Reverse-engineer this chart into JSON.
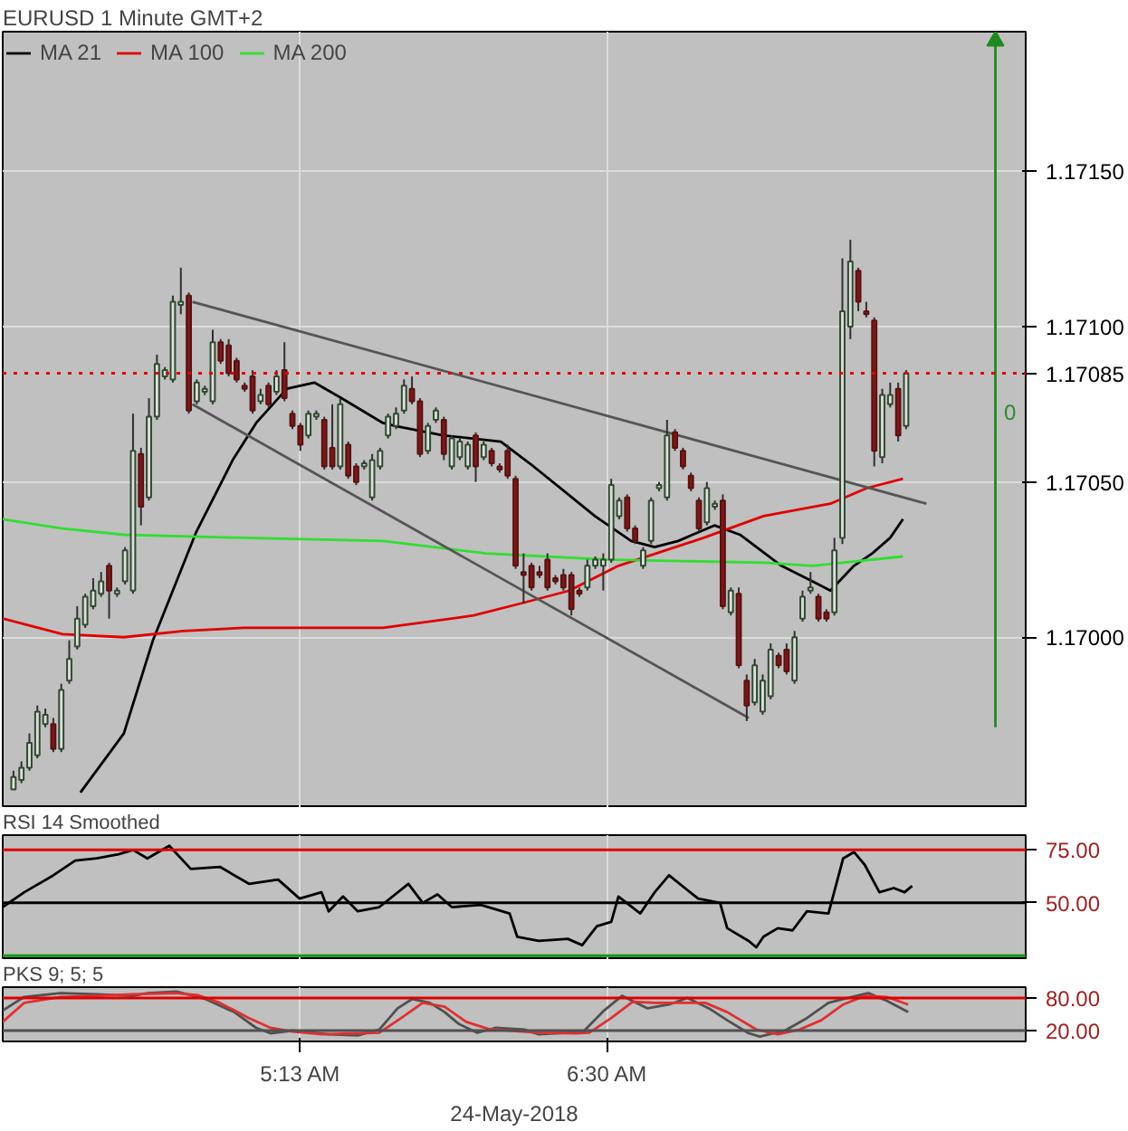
{
  "chart_data": [
    {
      "type": "candlestick",
      "title": "EURUSD 1 Minute GMT+2",
      "legend": "top left",
      "grid": true,
      "tick_labels": "y",
      "xlim": [
        3.9717,
        8.25
      ],
      "ylim": [
        1.16945,
        1.17195
      ],
      "yticks": [
        {
          "value": 1.17,
          "label": "1.17000"
        },
        {
          "value": 1.1705,
          "label": "1.17050"
        },
        {
          "value": 1.171,
          "label": "1.17100"
        },
        {
          "value": 1.1715,
          "label": "1.17150"
        }
      ],
      "x": [
        4.0167,
        4.05,
        4.0833,
        4.1167,
        4.15,
        4.1833,
        4.2167,
        4.25,
        4.2833,
        4.3167,
        4.35,
        4.3833,
        4.4167,
        4.45,
        4.4833,
        4.5167,
        4.55,
        4.5833,
        4.6167,
        4.65,
        4.6833,
        4.7167,
        4.75,
        4.7833,
        4.8167,
        4.85,
        4.8833,
        4.9167,
        4.95,
        4.9833,
        5.0167,
        5.05,
        5.0833,
        5.1167,
        5.15,
        5.1833,
        5.2167,
        5.25,
        5.2833,
        5.3167,
        5.35,
        5.3833,
        5.4167,
        5.45,
        5.4833,
        5.5167,
        5.55,
        5.5833,
        5.6167,
        5.65,
        5.6833,
        5.7167,
        5.75,
        5.7833,
        5.8167,
        5.85,
        5.8833,
        5.9167,
        5.95,
        5.9833,
        6.0167,
        6.05,
        6.0833,
        6.1167,
        6.15,
        6.1833,
        6.2167,
        6.25,
        6.2833,
        6.3167,
        6.35,
        6.3833,
        6.4167,
        6.45,
        6.4833,
        6.5167,
        6.55,
        6.5833,
        6.6167,
        6.65,
        6.6833,
        6.7167,
        6.75,
        6.7833,
        6.8167,
        6.85,
        6.8833,
        6.9167,
        6.95,
        6.9833,
        7.0167,
        7.05,
        7.0833,
        7.1167,
        7.15,
        7.1833,
        7.2167,
        7.25,
        7.2833,
        7.3167,
        7.35,
        7.3833,
        7.4167,
        7.45,
        7.4833,
        7.5167,
        7.55,
        7.5833,
        7.6167,
        7.65,
        7.6833,
        7.7167,
        7.75
      ],
      "ohlc": [
        [
          1.16951,
          1.16957,
          1.16951,
          1.16955
        ],
        [
          1.16954,
          1.1696,
          1.16953,
          1.16958
        ],
        [
          1.16958,
          1.16969,
          1.16957,
          1.16966
        ],
        [
          1.16962,
          1.16978,
          1.16961,
          1.16976
        ],
        [
          1.16972,
          1.16977,
          1.16971,
          1.16975
        ],
        [
          1.16972,
          1.16974,
          1.16963,
          1.16964
        ],
        [
          1.16964,
          1.16985,
          1.16963,
          1.16983
        ],
        [
          1.16986,
          1.16999,
          1.16985,
          1.16993
        ],
        [
          1.16997,
          1.1701,
          1.16996,
          1.17006
        ],
        [
          1.17004,
          1.17014,
          1.17003,
          1.17013
        ],
        [
          1.1701,
          1.17019,
          1.17009,
          1.17015
        ],
        [
          1.17014,
          1.17021,
          1.17013,
          1.17018
        ],
        [
          1.17023,
          1.17024,
          1.17006,
          1.17015
        ],
        [
          1.17014,
          1.17016,
          1.17013,
          1.17015
        ],
        [
          1.17018,
          1.17029,
          1.17017,
          1.17028
        ],
        [
          1.17015,
          1.17072,
          1.17014,
          1.1706
        ],
        [
          1.17059,
          1.17061,
          1.17036,
          1.17042
        ],
        [
          1.17045,
          1.17077,
          1.17044,
          1.17071
        ],
        [
          1.17071,
          1.17091,
          1.1707,
          1.17088
        ],
        [
          1.17084,
          1.17087,
          1.17083,
          1.17086
        ],
        [
          1.17083,
          1.1711,
          1.17082,
          1.17108
        ],
        [
          1.17107,
          1.17119,
          1.17104,
          1.17108
        ],
        [
          1.1711,
          1.17111,
          1.17072,
          1.17073
        ],
        [
          1.17076,
          1.17083,
          1.17075,
          1.17082
        ],
        [
          1.17079,
          1.17081,
          1.17078,
          1.1708
        ],
        [
          1.17076,
          1.17099,
          1.17075,
          1.17095
        ],
        [
          1.17095,
          1.17096,
          1.17088,
          1.17089
        ],
        [
          1.17094,
          1.17096,
          1.17084,
          1.17085
        ],
        [
          1.17089,
          1.1709,
          1.17082,
          1.17083
        ],
        [
          1.17081,
          1.17082,
          1.17079,
          1.1708
        ],
        [
          1.17084,
          1.17086,
          1.17072,
          1.17073
        ],
        [
          1.17076,
          1.1708,
          1.17075,
          1.17078
        ],
        [
          1.17081,
          1.17082,
          1.17074,
          1.17075
        ],
        [
          1.17079,
          1.17086,
          1.17078,
          1.17084
        ],
        [
          1.17086,
          1.17095,
          1.17076,
          1.17077
        ],
        [
          1.17072,
          1.17073,
          1.17067,
          1.17068
        ],
        [
          1.17068,
          1.17069,
          1.1706,
          1.17062
        ],
        [
          1.17065,
          1.17073,
          1.17064,
          1.17072
        ],
        [
          1.17071,
          1.17073,
          1.1707,
          1.17072
        ],
        [
          1.1707,
          1.17071,
          1.17054,
          1.17055
        ],
        [
          1.17061,
          1.17075,
          1.17054,
          1.17055
        ],
        [
          1.17055,
          1.17077,
          1.17054,
          1.17075
        ],
        [
          1.17062,
          1.17063,
          1.17051,
          1.17052
        ],
        [
          1.17055,
          1.17056,
          1.17049,
          1.1705
        ],
        [
          1.17055,
          1.17057,
          1.17054,
          1.17056
        ],
        [
          1.17045,
          1.17059,
          1.17044,
          1.17057
        ],
        [
          1.17055,
          1.17061,
          1.17054,
          1.1706
        ],
        [
          1.17065,
          1.17072,
          1.17064,
          1.17071
        ],
        [
          1.17068,
          1.17074,
          1.17067,
          1.17072
        ],
        [
          1.17073,
          1.17083,
          1.17072,
          1.17081
        ],
        [
          1.1708,
          1.17084,
          1.17075,
          1.17076
        ],
        [
          1.17076,
          1.17077,
          1.17058,
          1.17059
        ],
        [
          1.1706,
          1.17069,
          1.17059,
          1.17068
        ],
        [
          1.1707,
          1.17074,
          1.17069,
          1.17073
        ],
        [
          1.1707,
          1.17071,
          1.17057,
          1.17059
        ],
        [
          1.17055,
          1.17065,
          1.17054,
          1.17064
        ],
        [
          1.17058,
          1.17064,
          1.17057,
          1.17063
        ],
        [
          1.17055,
          1.17063,
          1.17054,
          1.17062
        ],
        [
          1.17065,
          1.17066,
          1.1705,
          1.17055
        ],
        [
          1.17058,
          1.17063,
          1.17057,
          1.17062
        ],
        [
          1.1706,
          1.17061,
          1.17055,
          1.17056
        ],
        [
          1.17055,
          1.17056,
          1.17053,
          1.17054
        ],
        [
          1.1706,
          1.17062,
          1.17051,
          1.17052
        ],
        [
          1.17051,
          1.17052,
          1.17022,
          1.17023
        ],
        [
          1.17021,
          1.17027,
          1.17011,
          1.1702
        ],
        [
          1.17023,
          1.17024,
          1.17015,
          1.17016
        ],
        [
          1.17021,
          1.17023,
          1.17019,
          1.1702
        ],
        [
          1.17025,
          1.17027,
          1.17015,
          1.17016
        ],
        [
          1.17019,
          1.1702,
          1.17017,
          1.17018
        ],
        [
          1.1702,
          1.17022,
          1.17015,
          1.17016
        ],
        [
          1.1702,
          1.17021,
          1.17007,
          1.17009
        ],
        [
          1.17015,
          1.17016,
          1.17013,
          1.17014
        ],
        [
          1.17016,
          1.17025,
          1.17015,
          1.17023
        ],
        [
          1.17023,
          1.17026,
          1.17022,
          1.17025
        ],
        [
          1.17023,
          1.17027,
          1.17015,
          1.17025
        ],
        [
          1.17025,
          1.17051,
          1.17024,
          1.17049
        ],
        [
          1.17039,
          1.17045,
          1.17038,
          1.17044
        ],
        [
          1.17045,
          1.17046,
          1.17034,
          1.17035
        ],
        [
          1.17035,
          1.17036,
          1.1703,
          1.17031
        ],
        [
          1.17023,
          1.17029,
          1.17022,
          1.17028
        ],
        [
          1.17031,
          1.17045,
          1.1703,
          1.17044
        ],
        [
          1.17048,
          1.1705,
          1.17047,
          1.17049
        ],
        [
          1.17045,
          1.1707,
          1.17044,
          1.17065
        ],
        [
          1.17066,
          1.17067,
          1.1706,
          1.17061
        ],
        [
          1.1706,
          1.17061,
          1.17054,
          1.17055
        ],
        [
          1.17052,
          1.17053,
          1.17047,
          1.17048
        ],
        [
          1.17044,
          1.17045,
          1.17034,
          1.17035
        ],
        [
          1.17037,
          1.1705,
          1.17036,
          1.17048
        ],
        [
          1.17042,
          1.17044,
          1.17041,
          1.17043
        ],
        [
          1.17044,
          1.17046,
          1.17009,
          1.1701
        ],
        [
          1.17008,
          1.17016,
          1.17007,
          1.17015
        ],
        [
          1.17014,
          1.17016,
          1.1699,
          1.16991
        ],
        [
          1.16986,
          1.16988,
          1.16973,
          1.16978
        ],
        [
          1.16979,
          1.16993,
          1.16978,
          1.16991
        ],
        [
          1.16976,
          1.16988,
          1.16975,
          1.16986
        ],
        [
          1.16981,
          1.16998,
          1.1698,
          1.16996
        ],
        [
          1.16994,
          1.16995,
          1.1699,
          1.16991
        ],
        [
          1.16996,
          1.16998,
          1.16988,
          1.16989
        ],
        [
          1.16986,
          1.17002,
          1.16985,
          1.17
        ],
        [
          1.17006,
          1.17015,
          1.17005,
          1.17013
        ],
        [
          1.17015,
          1.17021,
          1.17014,
          1.17016
        ],
        [
          1.17013,
          1.17014,
          1.17005,
          1.17006
        ],
        [
          1.17008,
          1.17009,
          1.17005,
          1.17006
        ],
        [
          1.17008,
          1.17032,
          1.17007,
          1.17028
        ],
        [
          1.17032,
          1.17122,
          1.1703,
          1.17105
        ],
        [
          1.171,
          1.17128,
          1.17096,
          1.17121
        ],
        [
          1.17118,
          1.17119,
          1.17105,
          1.17108
        ],
        [
          1.17105,
          1.17108,
          1.17103,
          1.17104
        ],
        [
          1.17102,
          1.17103,
          1.17055,
          1.1706
        ],
        [
          1.17058,
          1.1708,
          1.17056,
          1.17078
        ],
        [
          1.17075,
          1.17082,
          1.17074,
          1.17078
        ],
        [
          1.1708,
          1.17082,
          1.17063,
          1.17065
        ],
        [
          1.17068,
          1.17086,
          1.17067,
          1.17085
        ]
      ],
      "series": [
        {
          "type": "line",
          "name": "MA 21",
          "color": "#000000",
          "x": [
            4.2967,
            4.3733,
            4.4783,
            4.6,
            4.7817,
            4.9333,
            5.0317,
            5.16,
            5.275,
            5.3883,
            5.5617,
            5.615,
            5.8117,
            6.055,
            6.1917,
            6.32,
            6.4483,
            6.6,
            6.6983,
            6.7967,
            6.9483,
            7.055,
            7.2283,
            7.3583,
            7.4333,
            7.5317,
            7.6083,
            7.6833,
            7.7367
          ],
          "values": [
            1.1695,
            1.16958,
            1.16969,
            1.16999,
            1.17034,
            1.17057,
            1.17069,
            1.1708,
            1.17082,
            1.17077,
            1.17069,
            1.17068,
            1.17065,
            1.17063,
            1.17055,
            1.17047,
            1.17039,
            1.17031,
            1.17029,
            1.17031,
            1.17036,
            1.17033,
            1.17023,
            1.17018,
            1.17015,
            1.17023,
            1.17027,
            1.17032,
            1.17038
          ]
        },
        {
          "type": "line",
          "name": "MA 100",
          "color": "#e00000",
          "x": [
            3.9717,
            4.2217,
            4.4783,
            4.7283,
            4.9783,
            5.5617,
            5.9417,
            6.145,
            6.3417,
            6.5467,
            6.9033,
            7.1533,
            7.4333,
            7.585,
            7.7367
          ],
          "values": [
            1.17006,
            1.17001,
            1.17,
            1.17002,
            1.17003,
            1.17003,
            1.17007,
            1.17011,
            1.17015,
            1.17023,
            1.17032,
            1.17039,
            1.17043,
            1.17048,
            1.17051
          ]
        },
        {
          "type": "line",
          "name": "MA 200",
          "color": "#33dd33",
          "x": [
            3.9717,
            4.2217,
            4.4783,
            4.9783,
            5.5617,
            5.9933,
            6.4933,
            7.1533,
            7.3583,
            7.7367
          ],
          "values": [
            1.17038,
            1.17035,
            1.17033,
            1.17032,
            1.17031,
            1.17027,
            1.17025,
            1.17024,
            1.17023,
            1.17026
          ]
        },
        {
          "type": "line",
          "color": "#555555",
          "x": [
            4.765,
            7.835
          ],
          "values": [
            1.17108,
            1.17043
          ]
        },
        {
          "type": "line",
          "color": "#555555",
          "x": [
            4.765,
            7.0917
          ],
          "values": [
            1.17075,
            1.16974
          ]
        },
        {
          "type": "line",
          "color": "#1f8a1f",
          "marker": "triangle",
          "x": [
            8.1233,
            8.1233
          ],
          "values": [
            1.16971,
            1.17192
          ]
        }
      ],
      "ref_lines": [
        {
          "axis": "y",
          "value": 1.17085,
          "label": "1.17085",
          "color": "#e00000",
          "line_style": "dotted"
        }
      ],
      "annotations": [
        "0"
      ]
    },
    {
      "type": "line",
      "title": "RSI 14 Smoothed",
      "grid": true,
      "tick_labels": "y",
      "xlim": [
        3.9717,
        8.25
      ],
      "ylim": [
        23,
        82
      ],
      "yticks": [
        {
          "value": 75,
          "label": "75.00"
        },
        {
          "value": 50,
          "label": "50.00"
        }
      ],
      "series": [
        {
          "color": "#000000",
          "x": [
            3.9717,
            4.0617,
            4.1833,
            4.275,
            4.365,
            4.4567,
            4.5167,
            4.5767,
            4.6683,
            4.7583,
            4.88,
            5.0017,
            5.1233,
            5.2133,
            5.305,
            5.335,
            5.395,
            5.4567,
            5.5467,
            5.6683,
            5.7283,
            5.79,
            5.85,
            5.9717,
            6.0917,
            6.1233,
            6.2133,
            6.335,
            6.395,
            6.4567,
            6.5167,
            6.5467,
            6.6383,
            6.6983,
            6.7583,
            6.88,
            6.9717,
            7.0017,
            7.0917,
            7.1233,
            7.1533,
            7.2133,
            7.275,
            7.335,
            7.425,
            7.4867,
            7.5317,
            7.5767,
            7.6383,
            7.6983,
            7.7433,
            7.775
          ],
          "values": [
            48,
            55,
            63,
            70,
            71,
            73,
            75,
            71,
            77,
            66,
            67,
            59,
            61,
            52,
            55,
            46,
            53,
            46,
            48,
            59,
            50,
            54,
            48,
            49,
            45,
            34,
            32,
            33,
            30,
            39,
            41,
            53,
            45,
            55,
            63,
            52,
            50,
            38,
            32,
            29,
            34,
            38,
            37,
            46,
            45,
            71,
            74,
            68,
            55,
            57,
            55,
            58
          ]
        }
      ],
      "ref_lines": [
        {
          "axis": "y",
          "value": 75,
          "color": "#e00000"
        },
        {
          "axis": "y",
          "value": 50,
          "color": "#000000"
        },
        {
          "axis": "y",
          "value": 25,
          "color": "#119911"
        }
      ]
    },
    {
      "type": "line",
      "title": "PKS 9; 5; 5",
      "grid": true,
      "xlabel": "24-May-2018",
      "xlim": [
        3.9717,
        8.25
      ],
      "xticks": [
        {
          "value": 5.2167,
          "label": "5:13 AM"
        },
        {
          "value": 6.5,
          "label": "6:30 AM"
        }
      ],
      "ylim": [
        0,
        100
      ],
      "yticks": [
        {
          "value": 80,
          "label": "80.00"
        },
        {
          "value": 20,
          "label": "20.00"
        }
      ],
      "series": [
        {
          "color": "#505050",
          "x": [
            3.9717,
            4.0617,
            4.2133,
            4.365,
            4.5167,
            4.5767,
            4.6983,
            4.82,
            4.94,
            5.0317,
            5.0917,
            5.1833,
            5.2733,
            5.335,
            5.4567,
            5.5467,
            5.6233,
            5.6833,
            5.7583,
            5.82,
            5.88,
            5.9567,
            6.0317,
            6.1533,
            6.2133,
            6.335,
            6.395,
            6.4867,
            6.5617,
            6.6683,
            6.7583,
            6.835,
            6.925,
            7.0017,
            7.0917,
            7.1383,
            7.2433,
            7.335,
            7.425,
            7.4867,
            7.5917,
            7.6683,
            7.7583
          ],
          "values": [
            57,
            82,
            89,
            87,
            84,
            89,
            92,
            78,
            54,
            25,
            15,
            20,
            16,
            13,
            11,
            22,
            61,
            78,
            71,
            54,
            32,
            16,
            25,
            22,
            13,
            16,
            16,
            57,
            84,
            61,
            68,
            80,
            61,
            39,
            15,
            9,
            20,
            43,
            71,
            78,
            89,
            75,
            54
          ]
        },
        {
          "color": "#e03030",
          "x": [
            3.9717,
            4.0617,
            4.2133,
            4.365,
            4.5167,
            4.6983,
            4.79,
            4.88,
            5.0017,
            5.0917,
            5.1833,
            5.305,
            5.4567,
            5.5467,
            5.6383,
            5.7283,
            5.82,
            5.91,
            6.0017,
            6.0917,
            6.2133,
            6.365,
            6.425,
            6.5167,
            6.6067,
            6.6983,
            6.82,
            6.91,
            7.0017,
            7.1233,
            7.2133,
            7.305,
            7.395,
            7.4867,
            7.5767,
            7.6683,
            7.7583
          ],
          "values": [
            36,
            71,
            82,
            84,
            87,
            89,
            85,
            71,
            43,
            25,
            18,
            13,
            15,
            16,
            43,
            71,
            64,
            36,
            23,
            20,
            16,
            15,
            16,
            43,
            73,
            71,
            71,
            71,
            54,
            22,
            13,
            22,
            39,
            68,
            84,
            82,
            68
          ]
        }
      ],
      "ref_lines": [
        {
          "axis": "y",
          "value": 80,
          "color": "#e00000"
        },
        {
          "axis": "y",
          "value": 20,
          "color": "#505050"
        }
      ]
    }
  ]
}
